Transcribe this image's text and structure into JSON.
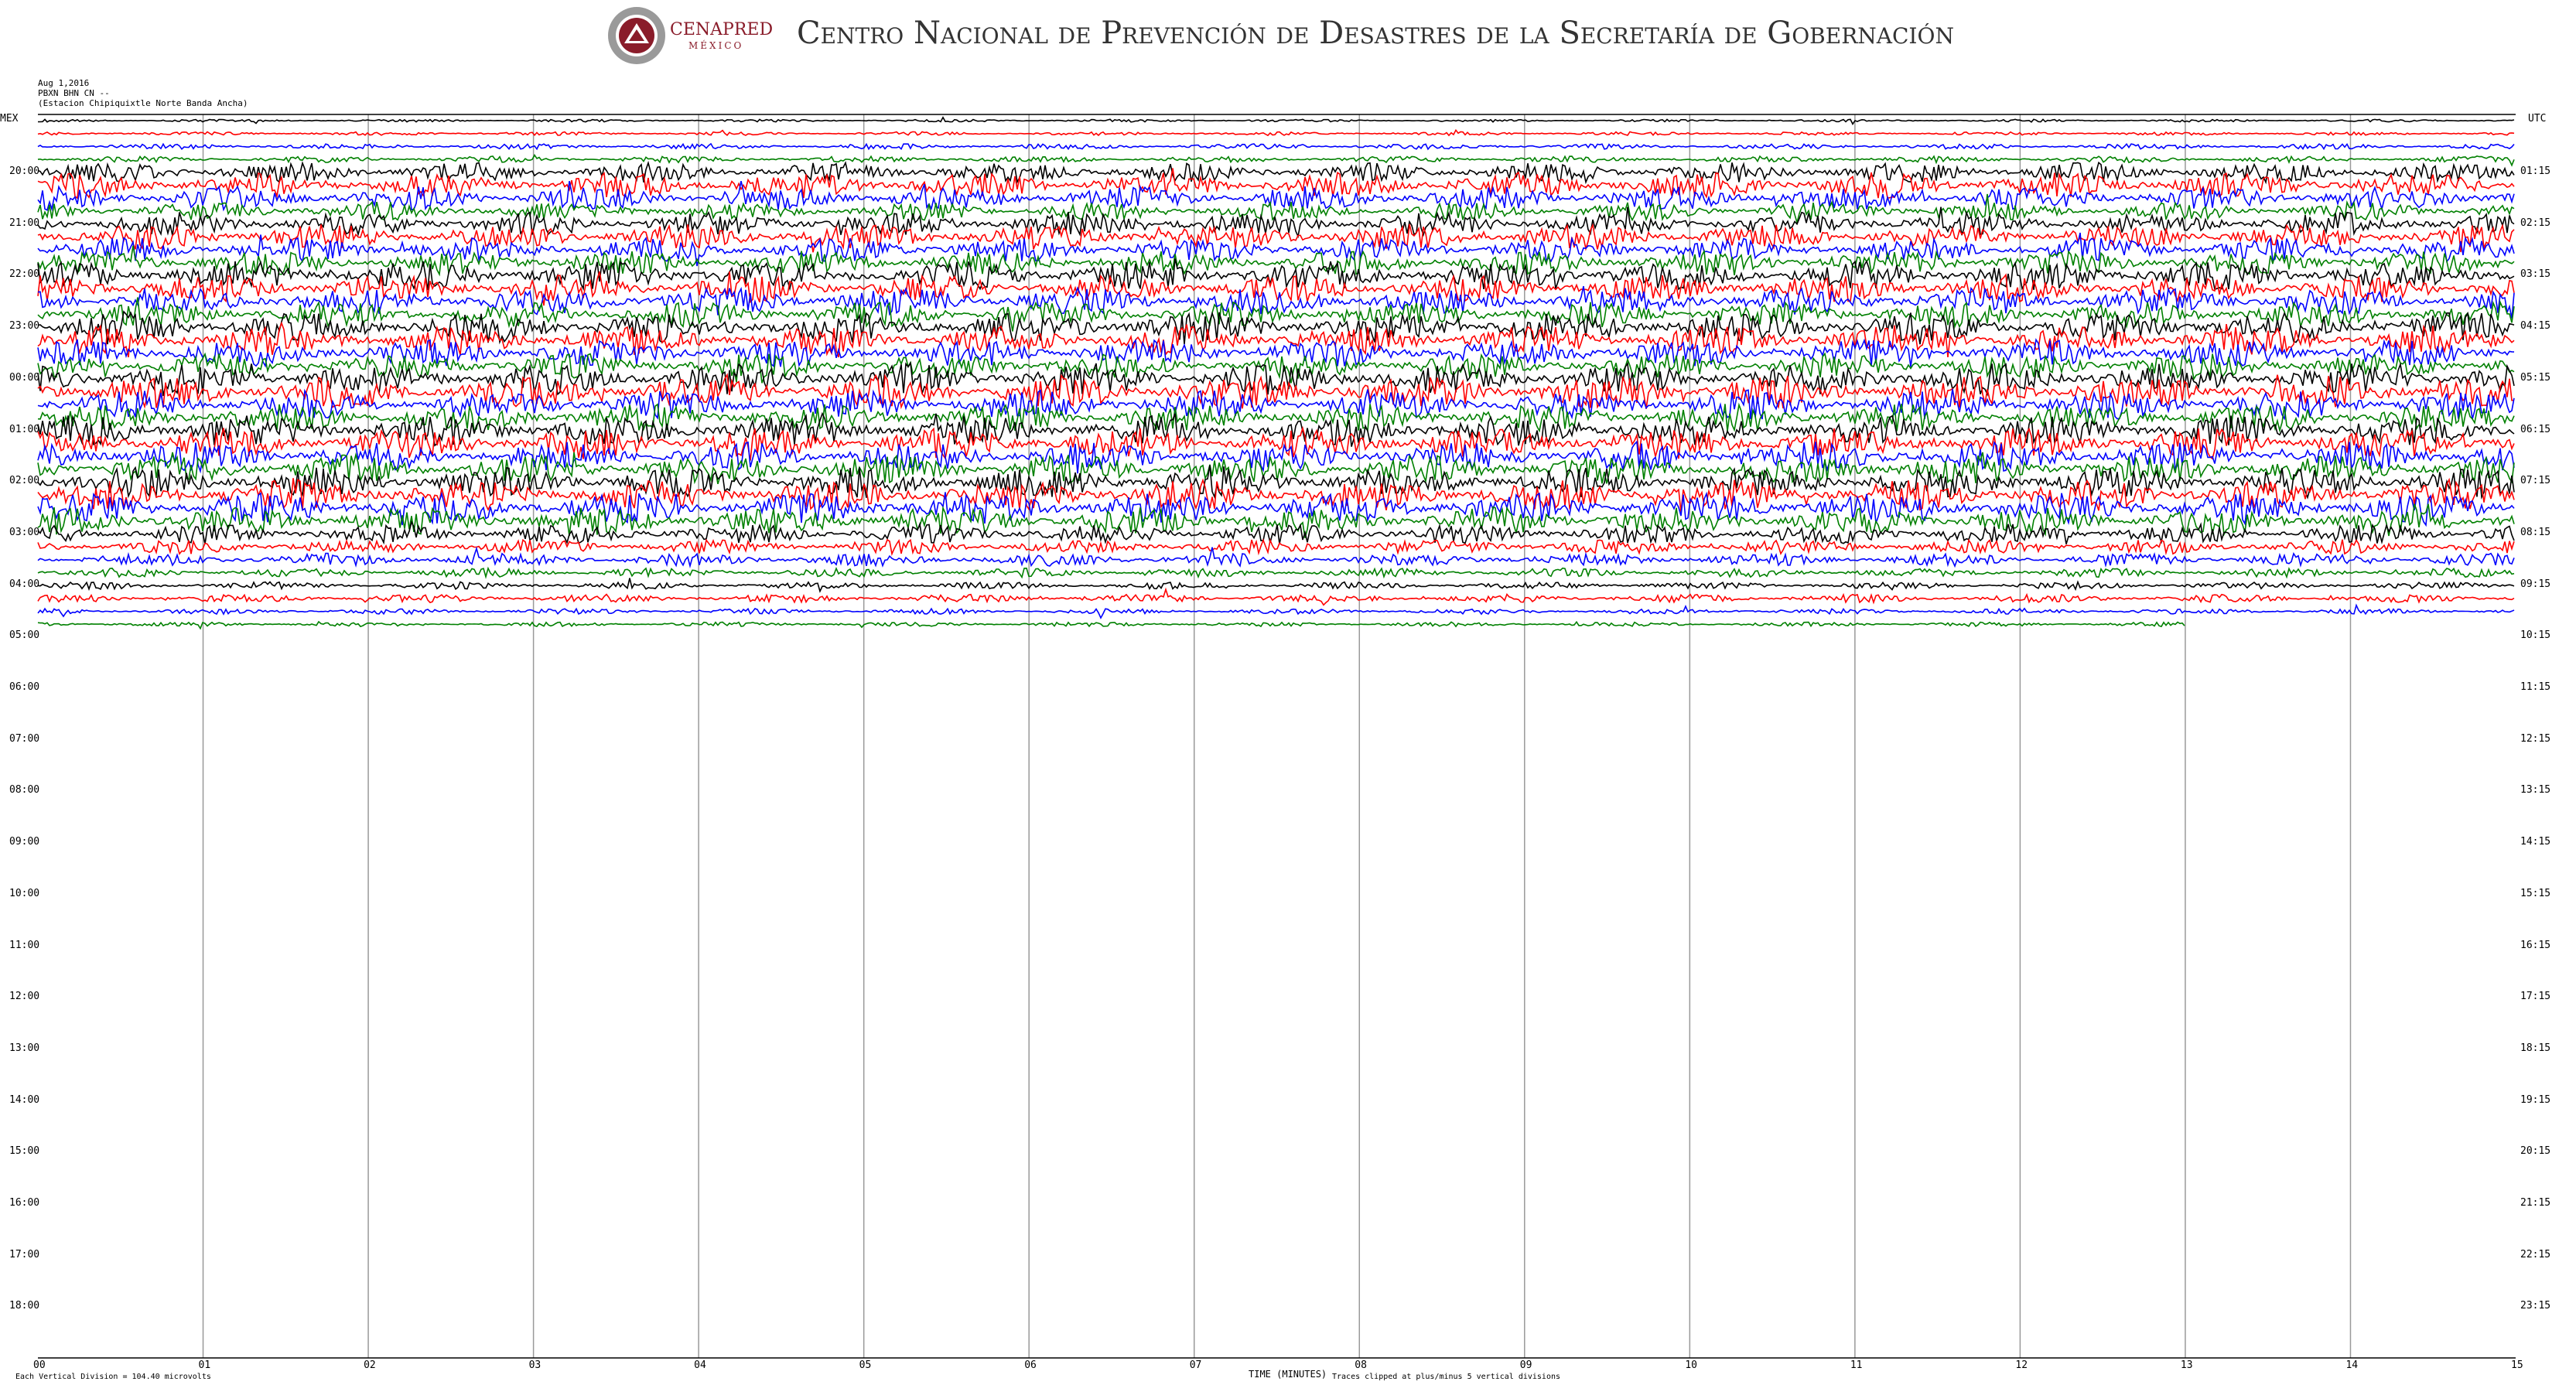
{
  "header": {
    "logo_name": "CENAPRED",
    "logo_sub": "MÉXICO",
    "title": "Centro Nacional de Prevención de Desastres de la Secretaría de Gobernación"
  },
  "meta": {
    "date": "Aug 1,2016",
    "station_code": "PBXN BHN CN --",
    "station_name": "(Estacion Chipiquixtle Norte Banda Ancha)"
  },
  "axis": {
    "left_label": "MEX",
    "right_label": "UTC",
    "x_label": "TIME (MINUTES)",
    "scale_note": "Each Vertical Division = 104.40 microvolts",
    "clip_note": "Traces clipped at plus/minus 5 vertical divisions"
  },
  "chart_data": {
    "type": "line",
    "title": "",
    "x_ticks": [
      "00",
      "01",
      "02",
      "03",
      "04",
      "05",
      "06",
      "07",
      "08",
      "09",
      "10",
      "11",
      "12",
      "13",
      "14",
      "15"
    ],
    "x_range": [
      0,
      15
    ],
    "left_hour_labels": [
      "20:00",
      "21:00",
      "22:00",
      "23:00",
      "00:00",
      "01:00",
      "02:00",
      "03:00",
      "04:00",
      "05:00",
      "06:00",
      "07:00",
      "08:00",
      "09:00",
      "10:00",
      "11:00",
      "12:00",
      "13:00",
      "14:00",
      "15:00",
      "16:00",
      "17:00",
      "18:00"
    ],
    "right_hour_labels": [
      "01:15",
      "02:15",
      "03:15",
      "04:15",
      "05:15",
      "06:15",
      "07:15",
      "08:15",
      "09:15",
      "10:15",
      "11:15",
      "12:15",
      "13:15",
      "14:15",
      "15:15",
      "16:15",
      "17:15",
      "18:15",
      "19:15",
      "20:15",
      "21:15",
      "22:15",
      "23:15"
    ],
    "trace_colors": [
      "#000000",
      "#ff0000",
      "#0000ff",
      "#008000"
    ],
    "trace_amplitudes": [
      0.3,
      0.4,
      0.6,
      0.7,
      2.2,
      2.8,
      2.6,
      2.0,
      2.6,
      2.8,
      2.6,
      2.6,
      3.2,
      3.0,
      3.0,
      2.8,
      3.4,
      3.2,
      3.0,
      2.8,
      3.4,
      3.6,
      3.2,
      3.0,
      3.4,
      3.4,
      3.2,
      3.2,
      3.4,
      3.4,
      3.4,
      3.0,
      2.2,
      1.6,
      1.4,
      1.0,
      0.8,
      0.9,
      0.6,
      0.5
    ],
    "grid": "vertical minute lines"
  }
}
